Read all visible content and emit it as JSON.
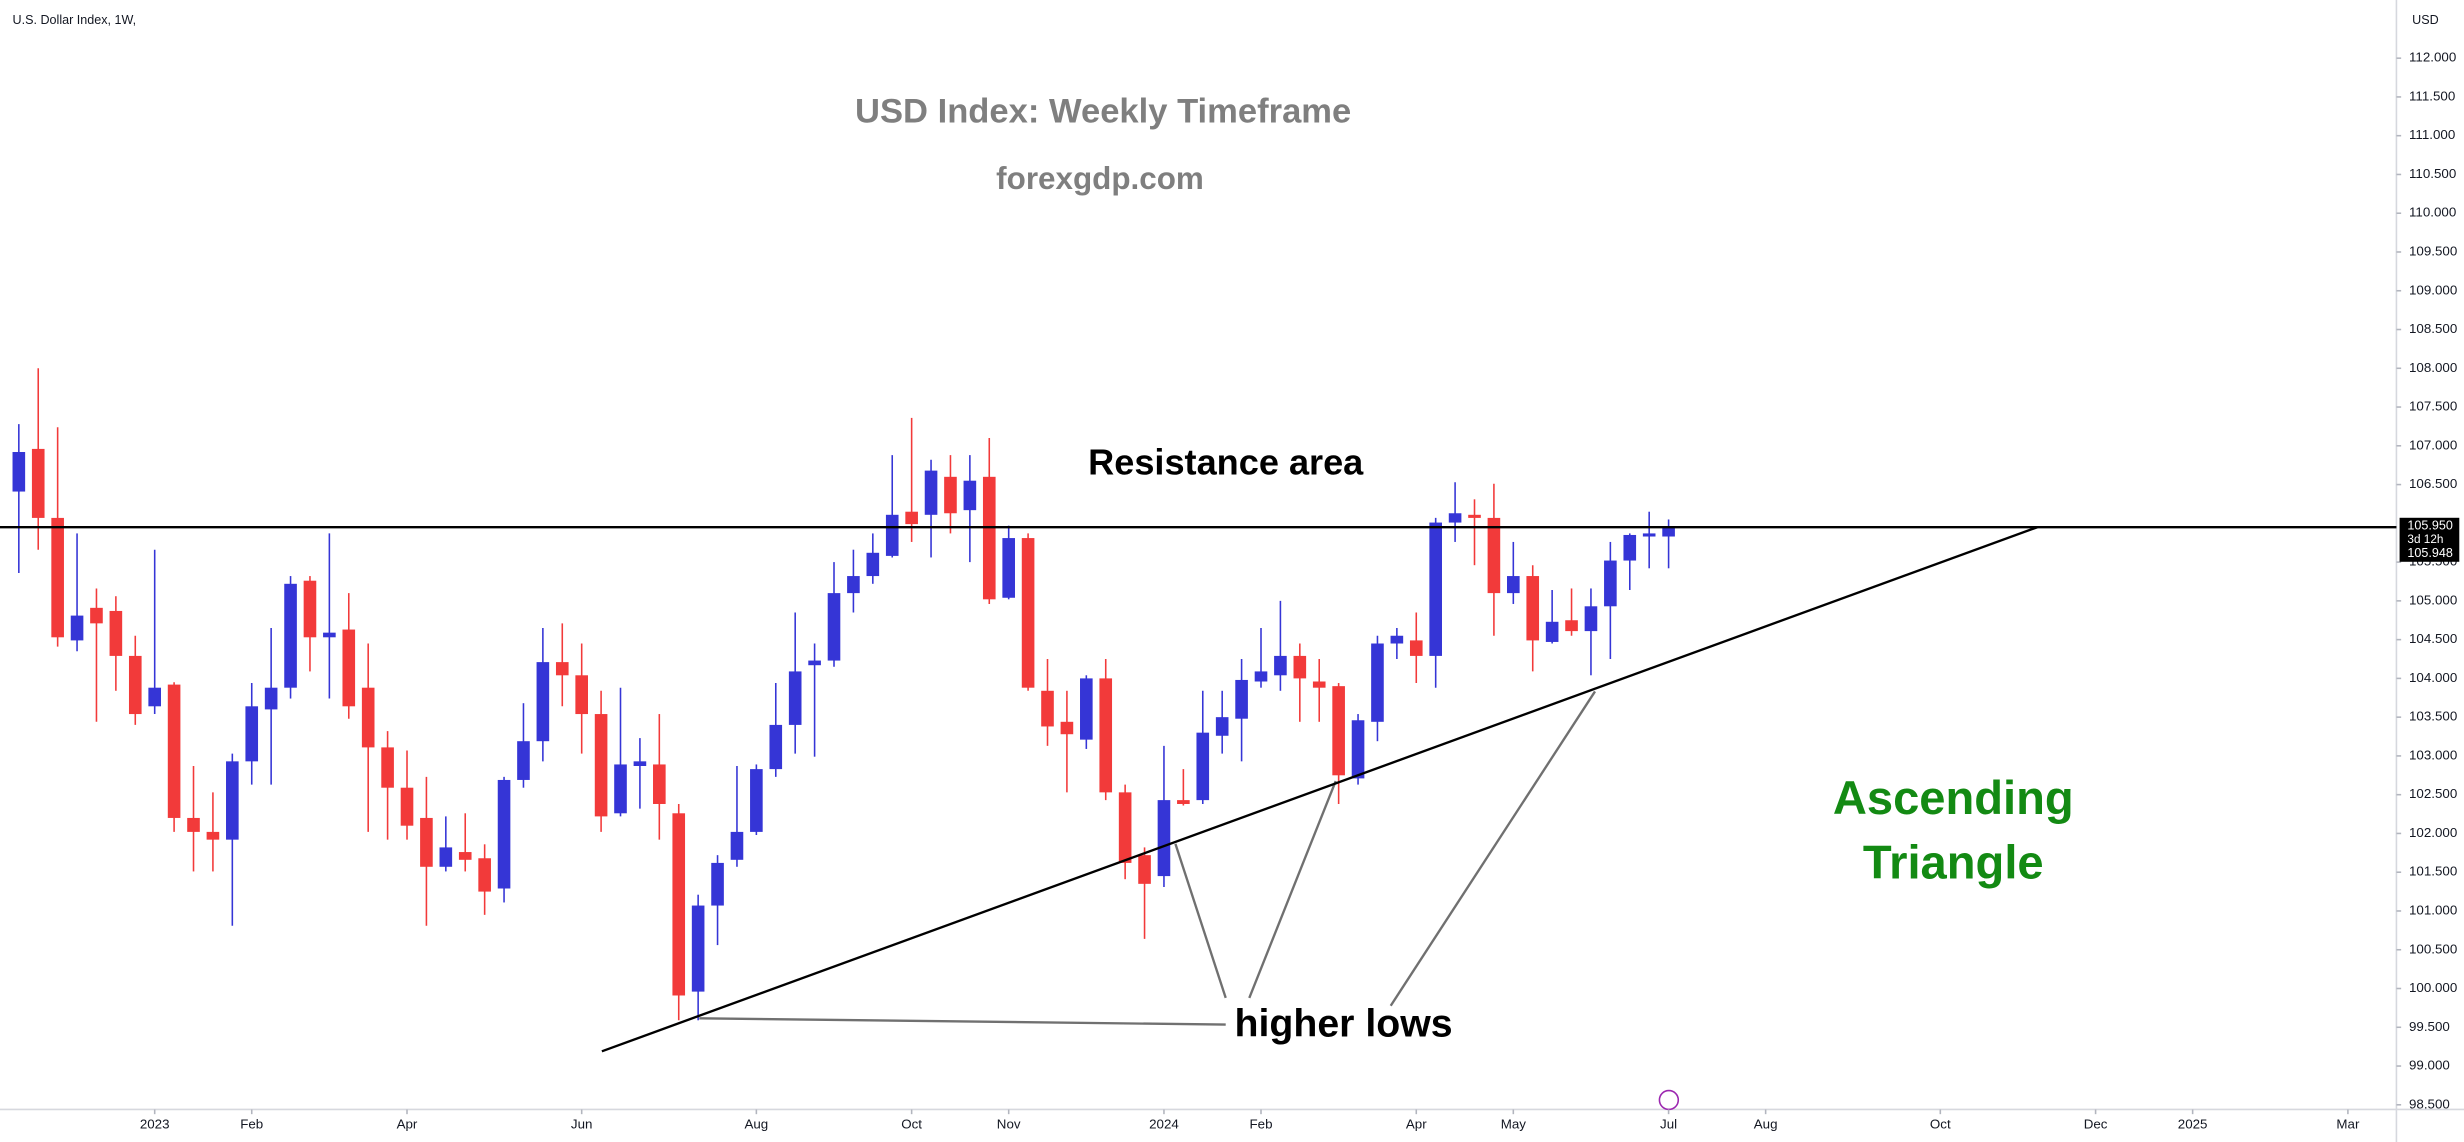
{
  "chart_data": {
    "type": "candlestick",
    "symbol_header": "U.S. Dollar Index, 1W,",
    "currency": "USD",
    "title": "USD Index: Weekly Timeframe",
    "subtitle": "forexgdp.com",
    "resistance_label": "Resistance area",
    "lows_label": "higher lows",
    "pattern_label": [
      "Ascending",
      "Triangle"
    ],
    "last_price": {
      "value": 105.95,
      "label": "105.950"
    },
    "countdown": "3d 12h",
    "bid_price": {
      "value": 105.948,
      "label": "105.948"
    },
    "resistance": 105.95,
    "trendline": [
      [
        30.04,
        99.19
      ],
      [
        104.0,
        105.95
      ]
    ],
    "up_color": "#3535d6",
    "down_color": "#f23a3a",
    "grid": false,
    "xlim": [
      -0.97,
      122.5
    ],
    "ylim": [
      98.44,
      112.75
    ],
    "xticks": [
      {
        "value": 7,
        "label": "2023"
      },
      {
        "value": 12,
        "label": "Feb"
      },
      {
        "value": 20,
        "label": "Apr"
      },
      {
        "value": 29,
        "label": "Jun"
      },
      {
        "value": 38,
        "label": "Aug"
      },
      {
        "value": 46,
        "label": "Oct"
      },
      {
        "value": 51,
        "label": "Nov"
      },
      {
        "value": 59,
        "label": "2024"
      },
      {
        "value": 64,
        "label": "Feb"
      },
      {
        "value": 72,
        "label": "Apr"
      },
      {
        "value": 77,
        "label": "May"
      },
      {
        "value": 85,
        "label": "Jul"
      },
      {
        "value": 90,
        "label": "Aug"
      },
      {
        "value": 99,
        "label": "Oct"
      },
      {
        "value": 107,
        "label": "Dec"
      },
      {
        "value": 112,
        "label": "2025"
      },
      {
        "value": 120,
        "label": "Mar"
      }
    ],
    "yticks": [
      {
        "value": 98.5,
        "label": "98.500"
      },
      {
        "value": 99,
        "label": "99.000"
      },
      {
        "value": 99.5,
        "label": "99.500"
      },
      {
        "value": 100,
        "label": "100.000"
      },
      {
        "value": 100.5,
        "label": "100.500"
      },
      {
        "value": 101,
        "label": "101.000"
      },
      {
        "value": 101.5,
        "label": "101.500"
      },
      {
        "value": 102,
        "label": "102.000"
      },
      {
        "value": 102.5,
        "label": "102.500"
      },
      {
        "value": 103,
        "label": "103.000"
      },
      {
        "value": 103.5,
        "label": "103.500"
      },
      {
        "value": 104,
        "label": "104.000"
      },
      {
        "value": 104.5,
        "label": "104.500"
      },
      {
        "value": 105,
        "label": "105.000"
      },
      {
        "value": 105.5,
        "label": "105.500"
      },
      {
        "value": 106.5,
        "label": "106.500"
      },
      {
        "value": 107,
        "label": "107.000"
      },
      {
        "value": 107.5,
        "label": "107.500"
      },
      {
        "value": 108,
        "label": "108.000"
      },
      {
        "value": 108.5,
        "label": "108.500"
      },
      {
        "value": 109,
        "label": "109.000"
      },
      {
        "value": 109.5,
        "label": "109.500"
      },
      {
        "value": 110,
        "label": "110.000"
      },
      {
        "value": 110.5,
        "label": "110.500"
      },
      {
        "value": 111,
        "label": "111.000"
      },
      {
        "value": 111.5,
        "label": "111.500"
      },
      {
        "value": 112,
        "label": "112.000"
      }
    ],
    "open": [
      106.41,
      106.96,
      106.07,
      104.49,
      104.91,
      104.87,
      104.29,
      103.64,
      103.92,
      102.2,
      102.02,
      101.92,
      102.93,
      103.6,
      103.88,
      105.26,
      104.53,
      104.63,
      103.88,
      103.11,
      102.59,
      102.2,
      101.57,
      101.76,
      101.68,
      101.29,
      102.69,
      103.19,
      104.21,
      104.04,
      103.54,
      102.26,
      102.87,
      102.89,
      102.26,
      99.96,
      101.07,
      101.66,
      102.02,
      102.83,
      103.4,
      104.17,
      104.23,
      105.1,
      105.32,
      105.58,
      106.15,
      106.11,
      106.6,
      106.17,
      106.6,
      105.04,
      105.81,
      103.84,
      103.44,
      103.21,
      104.0,
      102.53,
      101.72,
      101.45,
      102.43,
      102.43,
      103.26,
      103.48,
      103.96,
      104.04,
      104.29,
      103.96,
      103.9,
      102.71,
      103.44,
      104.45,
      104.49,
      104.29,
      106.01,
      106.11,
      106.07,
      105.1,
      105.32,
      104.47,
      104.75,
      104.61,
      104.93,
      105.52,
      105.83,
      105.83
    ],
    "high": [
      107.28,
      108.0,
      107.24,
      105.87,
      105.16,
      105.06,
      104.55,
      105.66,
      103.95,
      102.87,
      102.53,
      103.03,
      103.94,
      104.65,
      105.32,
      105.32,
      105.87,
      105.1,
      104.45,
      103.32,
      103.07,
      102.73,
      102.22,
      102.26,
      101.86,
      102.73,
      103.68,
      104.65,
      104.71,
      104.45,
      103.84,
      103.88,
      103.23,
      103.54,
      102.38,
      101.21,
      101.72,
      102.87,
      102.89,
      103.94,
      104.85,
      104.45,
      105.5,
      105.66,
      105.87,
      106.88,
      107.36,
      106.82,
      106.88,
      106.88,
      107.1,
      105.97,
      105.87,
      104.25,
      103.84,
      104.04,
      104.25,
      102.63,
      101.82,
      103.13,
      102.83,
      103.84,
      103.84,
      104.25,
      104.65,
      105.0,
      104.45,
      104.25,
      103.94,
      103.54,
      104.55,
      104.65,
      104.85,
      106.07,
      106.53,
      106.31,
      106.51,
      105.76,
      105.46,
      105.14,
      105.16,
      105.16,
      105.76,
      105.87,
      106.15,
      106.05
    ],
    "low": [
      105.36,
      105.66,
      104.41,
      104.35,
      103.44,
      103.84,
      103.4,
      103.54,
      102.02,
      101.51,
      101.51,
      100.81,
      102.63,
      102.63,
      103.74,
      104.09,
      103.74,
      103.48,
      102.02,
      101.92,
      101.92,
      100.81,
      101.51,
      101.51,
      100.95,
      101.11,
      102.59,
      102.93,
      103.64,
      103.03,
      102.02,
      102.22,
      102.32,
      101.92,
      99.59,
      99.59,
      100.56,
      101.57,
      101.98,
      102.73,
      103.03,
      102.99,
      104.15,
      104.85,
      105.22,
      105.56,
      105.76,
      105.56,
      105.87,
      105.5,
      104.96,
      105.02,
      103.84,
      103.13,
      102.53,
      103.09,
      102.43,
      101.41,
      100.64,
      101.31,
      102.36,
      102.38,
      103.03,
      102.93,
      103.88,
      103.84,
      103.44,
      103.44,
      102.38,
      102.63,
      103.19,
      104.25,
      103.94,
      103.88,
      105.76,
      105.46,
      104.55,
      104.96,
      104.09,
      104.45,
      104.55,
      104.04,
      104.25,
      105.14,
      105.42,
      105.42
    ],
    "close": [
      106.92,
      106.07,
      104.53,
      104.81,
      104.71,
      104.29,
      103.54,
      103.88,
      102.2,
      102.02,
      101.92,
      102.93,
      103.64,
      103.88,
      105.22,
      104.53,
      104.59,
      103.64,
      103.11,
      102.59,
      102.1,
      101.57,
      101.82,
      101.66,
      101.25,
      102.69,
      103.19,
      104.21,
      104.04,
      103.54,
      102.22,
      102.89,
      102.93,
      102.38,
      99.91,
      101.07,
      101.62,
      102.02,
      102.83,
      103.4,
      104.09,
      104.23,
      105.1,
      105.32,
      105.62,
      106.11,
      105.99,
      106.68,
      106.13,
      106.55,
      105.02,
      105.81,
      103.88,
      103.38,
      103.28,
      104.0,
      102.53,
      101.62,
      101.35,
      102.43,
      102.38,
      103.3,
      103.5,
      103.98,
      104.09,
      104.29,
      104.0,
      103.88,
      102.75,
      103.46,
      104.45,
      104.55,
      104.29,
      106.01,
      106.13,
      106.07,
      105.1,
      105.32,
      104.49,
      104.73,
      104.61,
      104.93,
      105.52,
      105.85,
      105.87,
      105.95
    ]
  }
}
